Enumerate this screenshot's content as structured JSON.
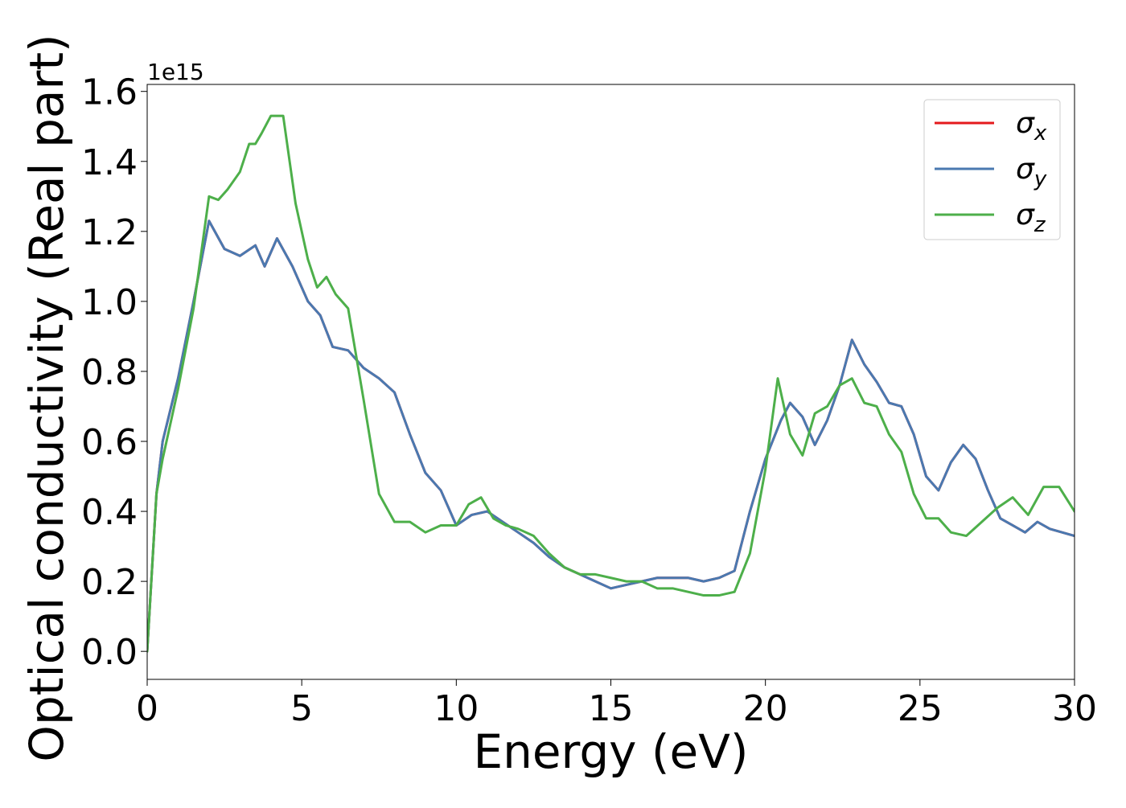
{
  "chart_data": {
    "type": "line",
    "title": "",
    "xlabel": "Energy (eV)",
    "ylabel": "Optical conductivity (Real part)",
    "y_scale_label": "1e15",
    "xlim": [
      0,
      30
    ],
    "ylim": [
      -0.08,
      1.62
    ],
    "x_ticks": [
      0,
      5,
      10,
      15,
      20,
      25,
      30
    ],
    "x_tick_labels": [
      "0",
      "5",
      "10",
      "15",
      "20",
      "25",
      "30"
    ],
    "y_ticks": [
      0.0,
      0.2,
      0.4,
      0.6,
      0.8,
      1.0,
      1.2,
      1.4,
      1.6
    ],
    "y_tick_labels": [
      "0.0",
      "0.2",
      "0.4",
      "0.6",
      "0.8",
      "1.0",
      "1.2",
      "1.4",
      "1.6"
    ],
    "grid": false,
    "legend_position": "top-right",
    "series": [
      {
        "name": "σx",
        "legend_base": "σ",
        "legend_sub": "x",
        "color": "#e41a1c",
        "x": [
          0,
          0.3,
          0.5,
          1.0,
          1.5,
          2.0,
          2.5,
          3.0,
          3.5,
          3.8,
          4.2,
          4.7,
          5.2,
          5.6,
          6.0,
          6.5,
          7.0,
          7.5,
          8.0,
          8.5,
          9.0,
          9.5,
          10.0,
          10.5,
          11.0,
          11.5,
          12.0,
          12.5,
          13.0,
          13.5,
          14.0,
          14.5,
          15.0,
          15.5,
          16.0,
          16.5,
          17.0,
          17.5,
          18.0,
          18.5,
          19.0,
          19.5,
          20.0,
          20.5,
          20.8,
          21.2,
          21.6,
          22.0,
          22.4,
          22.8,
          23.2,
          23.6,
          24.0,
          24.4,
          24.8,
          25.2,
          25.6,
          26.0,
          26.4,
          26.8,
          27.2,
          27.6,
          28.0,
          28.4,
          28.8,
          29.2,
          29.6,
          30.0
        ],
        "y": [
          0.0,
          0.45,
          0.6,
          0.78,
          1.0,
          1.23,
          1.15,
          1.13,
          1.16,
          1.1,
          1.18,
          1.1,
          1.0,
          0.96,
          0.87,
          0.86,
          0.81,
          0.78,
          0.74,
          0.62,
          0.51,
          0.46,
          0.36,
          0.39,
          0.4,
          0.37,
          0.34,
          0.31,
          0.27,
          0.24,
          0.22,
          0.2,
          0.18,
          0.19,
          0.2,
          0.21,
          0.21,
          0.21,
          0.2,
          0.21,
          0.23,
          0.4,
          0.55,
          0.66,
          0.71,
          0.67,
          0.59,
          0.66,
          0.76,
          0.89,
          0.82,
          0.77,
          0.71,
          0.7,
          0.62,
          0.5,
          0.46,
          0.54,
          0.59,
          0.55,
          0.46,
          0.38,
          0.36,
          0.34,
          0.37,
          0.35,
          0.34,
          0.33
        ]
      },
      {
        "name": "σy",
        "legend_base": "σ",
        "legend_sub": "y",
        "color": "#4a79b0",
        "x": [
          0,
          0.3,
          0.5,
          1.0,
          1.5,
          2.0,
          2.5,
          3.0,
          3.5,
          3.8,
          4.2,
          4.7,
          5.2,
          5.6,
          6.0,
          6.5,
          7.0,
          7.5,
          8.0,
          8.5,
          9.0,
          9.5,
          10.0,
          10.5,
          11.0,
          11.5,
          12.0,
          12.5,
          13.0,
          13.5,
          14.0,
          14.5,
          15.0,
          15.5,
          16.0,
          16.5,
          17.0,
          17.5,
          18.0,
          18.5,
          19.0,
          19.5,
          20.0,
          20.5,
          20.8,
          21.2,
          21.6,
          22.0,
          22.4,
          22.8,
          23.2,
          23.6,
          24.0,
          24.4,
          24.8,
          25.2,
          25.6,
          26.0,
          26.4,
          26.8,
          27.2,
          27.6,
          28.0,
          28.4,
          28.8,
          29.2,
          29.6,
          30.0
        ],
        "y": [
          0.0,
          0.45,
          0.6,
          0.78,
          1.0,
          1.23,
          1.15,
          1.13,
          1.16,
          1.1,
          1.18,
          1.1,
          1.0,
          0.96,
          0.87,
          0.86,
          0.81,
          0.78,
          0.74,
          0.62,
          0.51,
          0.46,
          0.36,
          0.39,
          0.4,
          0.37,
          0.34,
          0.31,
          0.27,
          0.24,
          0.22,
          0.2,
          0.18,
          0.19,
          0.2,
          0.21,
          0.21,
          0.21,
          0.2,
          0.21,
          0.23,
          0.4,
          0.55,
          0.66,
          0.71,
          0.67,
          0.59,
          0.66,
          0.76,
          0.89,
          0.82,
          0.77,
          0.71,
          0.7,
          0.62,
          0.5,
          0.46,
          0.54,
          0.59,
          0.55,
          0.46,
          0.38,
          0.36,
          0.34,
          0.37,
          0.35,
          0.34,
          0.33
        ]
      },
      {
        "name": "σz",
        "legend_base": "σ",
        "legend_sub": "z",
        "color": "#4daf4a",
        "x": [
          0,
          0.3,
          0.5,
          1.0,
          1.5,
          2.0,
          2.3,
          2.6,
          3.0,
          3.3,
          3.5,
          3.7,
          4.0,
          4.4,
          4.8,
          5.2,
          5.5,
          5.8,
          6.1,
          6.5,
          7.0,
          7.5,
          8.0,
          8.5,
          9.0,
          9.5,
          10.0,
          10.4,
          10.8,
          11.2,
          11.6,
          12.0,
          12.5,
          13.0,
          13.5,
          14.0,
          14.5,
          15.0,
          15.5,
          16.0,
          16.5,
          17.0,
          17.5,
          18.0,
          18.5,
          19.0,
          19.5,
          20.0,
          20.4,
          20.8,
          21.2,
          21.6,
          22.0,
          22.4,
          22.8,
          23.2,
          23.6,
          24.0,
          24.4,
          24.8,
          25.2,
          25.6,
          26.0,
          26.5,
          27.0,
          27.5,
          28.0,
          28.5,
          29.0,
          29.5,
          30.0
        ],
        "y": [
          0.0,
          0.45,
          0.55,
          0.75,
          0.98,
          1.3,
          1.29,
          1.32,
          1.37,
          1.45,
          1.45,
          1.48,
          1.53,
          1.53,
          1.28,
          1.12,
          1.04,
          1.07,
          1.02,
          0.98,
          0.72,
          0.45,
          0.37,
          0.37,
          0.34,
          0.36,
          0.36,
          0.42,
          0.44,
          0.38,
          0.36,
          0.35,
          0.33,
          0.28,
          0.24,
          0.22,
          0.22,
          0.21,
          0.2,
          0.2,
          0.18,
          0.18,
          0.17,
          0.16,
          0.16,
          0.17,
          0.28,
          0.52,
          0.78,
          0.62,
          0.56,
          0.68,
          0.7,
          0.76,
          0.78,
          0.71,
          0.7,
          0.62,
          0.57,
          0.45,
          0.38,
          0.38,
          0.34,
          0.33,
          0.37,
          0.41,
          0.44,
          0.39,
          0.47,
          0.47,
          0.4
        ]
      }
    ]
  }
}
